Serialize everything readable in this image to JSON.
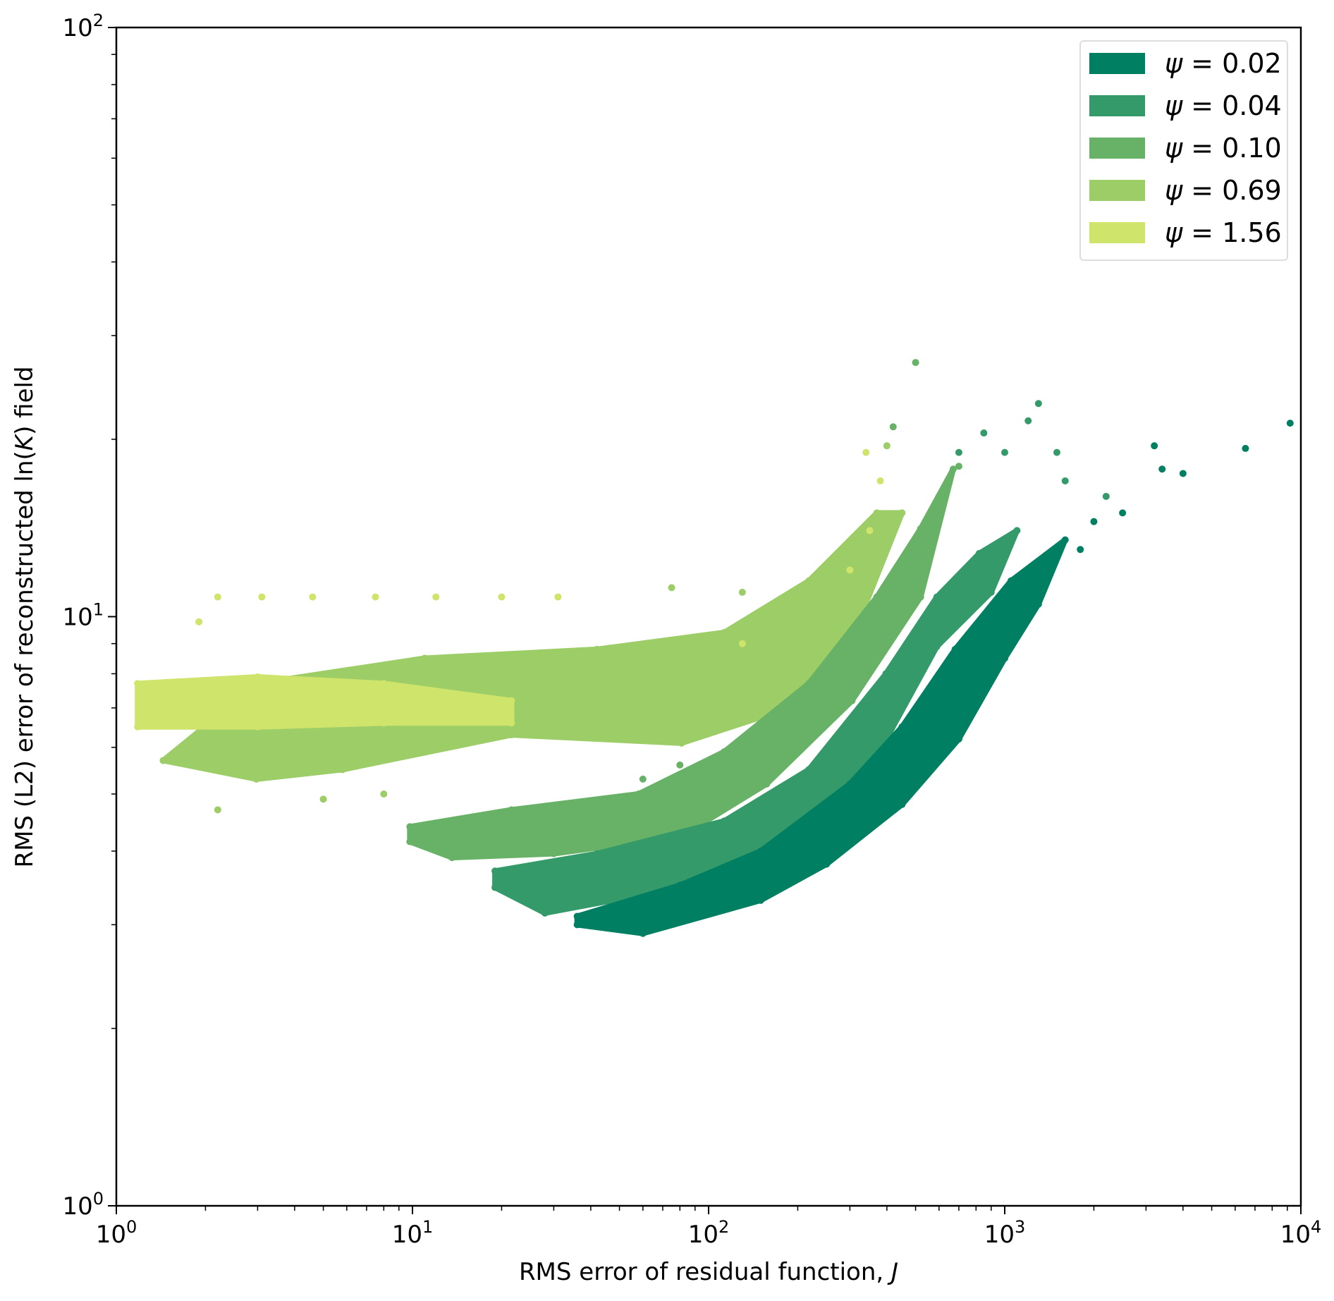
{
  "chart_data": {
    "type": "scatter",
    "title": "",
    "xlabel": "RMS error of residual function, ",
    "xlabel_italic": "J",
    "ylabel_pre": "RMS (L2) error of reconstructed ln(",
    "ylabel_italic": "K",
    "ylabel_post": ") field",
    "xscale": "log",
    "yscale": "log",
    "xlim": [
      1,
      10000
    ],
    "ylim": [
      1,
      100
    ],
    "grid": false,
    "legend_position": "top-right",
    "x_ticks": [
      {
        "base": "10",
        "exp": "0",
        "value": 1
      },
      {
        "base": "10",
        "exp": "1",
        "value": 10
      },
      {
        "base": "10",
        "exp": "2",
        "value": 100
      },
      {
        "base": "10",
        "exp": "3",
        "value": 1000
      },
      {
        "base": "10",
        "exp": "4",
        "value": 10000
      }
    ],
    "y_ticks": [
      {
        "base": "10",
        "exp": "0",
        "value": 1
      },
      {
        "base": "10",
        "exp": "1",
        "value": 10
      },
      {
        "base": "10",
        "exp": "2",
        "value": 100
      }
    ],
    "series": [
      {
        "name": "ψ = 0.02",
        "symbol": "ψ",
        "value": "0.02",
        "color": "#007f62",
        "envelope": [
          [
            36,
            3.1
          ],
          [
            80,
            3.5
          ],
          [
            150,
            4.0
          ],
          [
            300,
            5.2
          ],
          [
            450,
            6.5
          ],
          [
            680,
            8.8
          ],
          [
            1050,
            11.5
          ],
          [
            1600,
            13.5
          ],
          [
            1300,
            10.5
          ],
          [
            1000,
            8.5
          ],
          [
            700,
            6.2
          ],
          [
            450,
            4.8
          ],
          [
            250,
            3.8
          ],
          [
            150,
            3.3
          ],
          [
            60,
            2.9
          ],
          [
            36,
            3.0
          ]
        ],
        "outliers": [
          [
            6500,
            19.3
          ],
          [
            9200,
            21.3
          ],
          [
            4000,
            17.5
          ],
          [
            3400,
            17.8
          ],
          [
            2500,
            15
          ],
          [
            3200,
            19.5
          ],
          [
            2000,
            14.5
          ],
          [
            1800,
            13
          ]
        ]
      },
      {
        "name": "ψ = 0.04",
        "symbol": "ψ",
        "value": "0.04",
        "color": "#359a69",
        "envelope": [
          [
            19,
            3.7
          ],
          [
            42,
            3.96
          ],
          [
            113,
            4.5
          ],
          [
            218,
            5.5
          ],
          [
            397,
            8.0
          ],
          [
            590,
            10.8
          ],
          [
            820,
            12.8
          ],
          [
            1100,
            14
          ],
          [
            900,
            11
          ],
          [
            590,
            8.9
          ],
          [
            305,
            4.85
          ],
          [
            157,
            3.85
          ],
          [
            81,
            3.47
          ],
          [
            28,
            3.14
          ],
          [
            19,
            3.47
          ]
        ],
        "outliers": [
          [
            2200,
            16
          ],
          [
            1300,
            23
          ],
          [
            1200,
            21.5
          ],
          [
            1500,
            19
          ],
          [
            850,
            20.5
          ],
          [
            1000,
            19
          ],
          [
            700,
            19
          ],
          [
            1600,
            17
          ]
        ]
      },
      {
        "name": "ψ = 0.10",
        "symbol": "ψ",
        "value": "0.10",
        "color": "#67b267",
        "envelope": [
          [
            9.8,
            4.4
          ],
          [
            21.6,
            4.7
          ],
          [
            58,
            5.0
          ],
          [
            113,
            5.9
          ],
          [
            218,
            7.7
          ],
          [
            370,
            10.8
          ],
          [
            520,
            14.1
          ],
          [
            670,
            17.8
          ],
          [
            520,
            10.8
          ],
          [
            305,
            7.2
          ],
          [
            157,
            5.2
          ],
          [
            81,
            4.24
          ],
          [
            30,
            3.96
          ],
          [
            13.6,
            3.9
          ],
          [
            9.8,
            4.15
          ]
        ],
        "outliers": [
          [
            500,
            27
          ],
          [
            700,
            18
          ],
          [
            420,
            21
          ],
          [
            600,
            16
          ],
          [
            80,
            5.6
          ],
          [
            60,
            5.3
          ]
        ]
      },
      {
        "name": "ψ = 0.69",
        "symbol": "ψ",
        "value": "0.69",
        "color": "#9ccd66",
        "envelope": [
          [
            1.44,
            5.7
          ],
          [
            3,
            7.7
          ],
          [
            11,
            8.5
          ],
          [
            42,
            8.8
          ],
          [
            113,
            9.4
          ],
          [
            218,
            11.5
          ],
          [
            370,
            15
          ],
          [
            450,
            15
          ],
          [
            300,
            9
          ],
          [
            157,
            6.8
          ],
          [
            81,
            6.1
          ],
          [
            21.6,
            6.3
          ],
          [
            5.8,
            5.5
          ],
          [
            2.97,
            5.3
          ],
          [
            1.44,
            5.7
          ]
        ],
        "outliers": [
          [
            400,
            19.5
          ],
          [
            130,
            11
          ],
          [
            75,
            11.2
          ],
          [
            5,
            4.9
          ],
          [
            8,
            5
          ],
          [
            2.2,
            4.7
          ]
        ]
      },
      {
        "name": "ψ = 1.56",
        "symbol": "ψ",
        "value": "1.56",
        "color": "#cee46a",
        "envelope": [
          [
            1.18,
            7.7
          ],
          [
            3,
            7.9
          ],
          [
            8,
            7.7
          ],
          [
            21.6,
            7.2
          ],
          [
            21.6,
            6.6
          ],
          [
            8,
            6.6
          ],
          [
            3,
            6.5
          ],
          [
            1.18,
            6.5
          ]
        ],
        "outliers": [
          [
            2.2,
            10.8
          ],
          [
            3.1,
            10.8
          ],
          [
            4.6,
            10.8
          ],
          [
            7.5,
            10.8
          ],
          [
            12,
            10.8
          ],
          [
            20,
            10.8
          ],
          [
            31,
            10.8
          ],
          [
            300,
            12
          ],
          [
            380,
            17
          ],
          [
            340,
            19
          ],
          [
            330,
            10
          ],
          [
            350,
            14
          ],
          [
            1.9,
            9.8
          ],
          [
            130,
            9
          ]
        ]
      }
    ]
  }
}
